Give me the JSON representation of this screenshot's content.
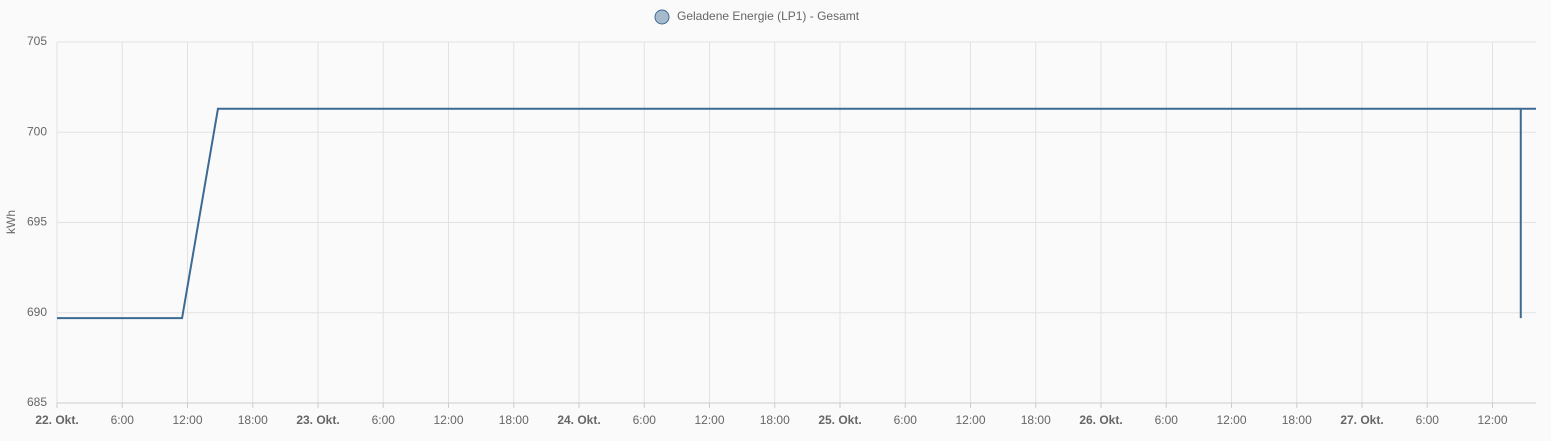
{
  "chart_data": {
    "type": "line",
    "legend": "top-center",
    "y_label": "kWh",
    "series": [
      {
        "name": "Geladene Energie (LP1) - Gesamt",
        "color": "#3d6a94",
        "marker_fill": "#a7b9cc",
        "x": [
          0,
          11.5,
          14.8,
          134.6,
          134.6,
          134.6,
          136
        ],
        "values": [
          689.7,
          689.7,
          701.3,
          701.3,
          689.7,
          701.3,
          701.3
        ]
      }
    ],
    "xlim": [
      0,
      136
    ],
    "xticks": [
      {
        "value": 0,
        "label": "22. Okt."
      },
      {
        "value": 6,
        "label": "6:00"
      },
      {
        "value": 12,
        "label": "12:00"
      },
      {
        "value": 18,
        "label": "18:00"
      },
      {
        "value": 24,
        "label": "23. Okt."
      },
      {
        "value": 30,
        "label": "6:00"
      },
      {
        "value": 36,
        "label": "12:00"
      },
      {
        "value": 42,
        "label": "18:00"
      },
      {
        "value": 48,
        "label": "24. Okt."
      },
      {
        "value": 54,
        "label": "6:00"
      },
      {
        "value": 60,
        "label": "12:00"
      },
      {
        "value": 66,
        "label": "18:00"
      },
      {
        "value": 72,
        "label": "25. Okt."
      },
      {
        "value": 78,
        "label": "6:00"
      },
      {
        "value": 84,
        "label": "12:00"
      },
      {
        "value": 90,
        "label": "18:00"
      },
      {
        "value": 96,
        "label": "26. Okt."
      },
      {
        "value": 102,
        "label": "6:00"
      },
      {
        "value": 108,
        "label": "12:00"
      },
      {
        "value": 114,
        "label": "18:00"
      },
      {
        "value": 120,
        "label": "27. Okt."
      },
      {
        "value": 126,
        "label": "6:00"
      },
      {
        "value": 132,
        "label": "12:00"
      }
    ],
    "ylim": [
      685,
      705
    ],
    "yticks": [
      685,
      690,
      695,
      700,
      705
    ],
    "grid": true
  }
}
